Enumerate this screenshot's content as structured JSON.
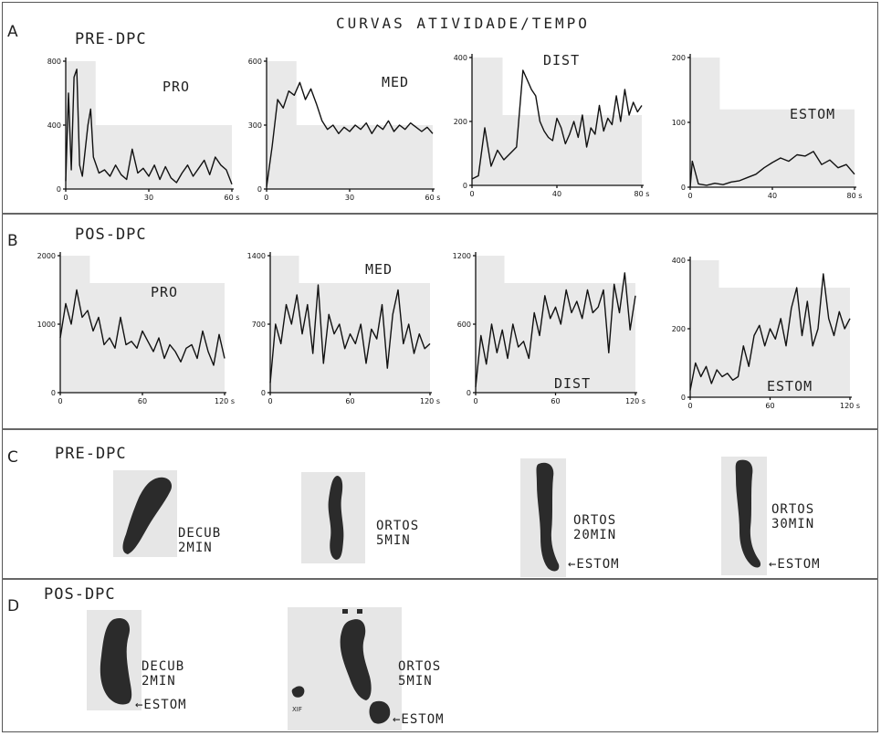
{
  "title": "CURVAS ATIVIDADE/TEMPO",
  "panels": {
    "A": {
      "letter": "A",
      "label": "PRE-DPC"
    },
    "B": {
      "letter": "B",
      "label": "POS-DPC"
    },
    "C": {
      "letter": "C",
      "label": "PRE-DPC"
    },
    "D": {
      "letter": "D",
      "label": "POS-DPC"
    }
  },
  "chart_data": [
    {
      "type": "line",
      "panel": "A",
      "series_label": "PRO",
      "xunit": "s",
      "xticks": [
        "0",
        "30",
        "60"
      ],
      "yticks": [
        "0",
        "400",
        "800"
      ],
      "xlim": [
        0,
        60
      ],
      "ylim": [
        0,
        800
      ],
      "x": [
        0,
        1,
        2,
        3,
        4,
        5,
        6,
        8,
        9,
        10,
        12,
        14,
        16,
        18,
        20,
        22,
        24,
        26,
        28,
        30,
        32,
        34,
        36,
        38,
        40,
        42,
        44,
        46,
        48,
        50,
        52,
        54,
        56,
        58,
        60
      ],
      "y": [
        50,
        600,
        120,
        700,
        750,
        150,
        80,
        400,
        500,
        200,
        100,
        120,
        80,
        150,
        90,
        60,
        250,
        100,
        130,
        80,
        150,
        60,
        140,
        70,
        40,
        100,
        150,
        80,
        130,
        180,
        90,
        200,
        150,
        120,
        30
      ]
    },
    {
      "type": "line",
      "panel": "A",
      "series_label": "MED",
      "xunit": "s",
      "xticks": [
        "0",
        "30",
        "60"
      ],
      "yticks": [
        "0",
        "300",
        "600"
      ],
      "xlim": [
        0,
        60
      ],
      "ylim": [
        0,
        600
      ],
      "x": [
        0,
        2,
        4,
        6,
        8,
        10,
        12,
        14,
        16,
        18,
        20,
        22,
        24,
        26,
        28,
        30,
        32,
        34,
        36,
        38,
        40,
        42,
        44,
        46,
        48,
        50,
        52,
        54,
        56,
        58,
        60
      ],
      "y": [
        10,
        200,
        420,
        380,
        460,
        440,
        500,
        420,
        470,
        400,
        320,
        280,
        300,
        260,
        290,
        270,
        300,
        280,
        310,
        260,
        300,
        280,
        320,
        270,
        300,
        280,
        310,
        290,
        270,
        290,
        260
      ]
    },
    {
      "type": "line",
      "panel": "A",
      "series_label": "DIST",
      "xunit": "s",
      "xticks": [
        "0",
        "40",
        "80"
      ],
      "yticks": [
        "0",
        "200",
        "400"
      ],
      "xlim": [
        0,
        80
      ],
      "ylim": [
        0,
        400
      ],
      "x": [
        0,
        3,
        6,
        9,
        12,
        15,
        18,
        21,
        24,
        26,
        28,
        30,
        32,
        34,
        36,
        38,
        40,
        42,
        44,
        46,
        48,
        50,
        52,
        54,
        56,
        58,
        60,
        62,
        64,
        66,
        68,
        70,
        72,
        74,
        76,
        78,
        80
      ],
      "y": [
        20,
        30,
        180,
        60,
        110,
        80,
        100,
        120,
        360,
        330,
        300,
        280,
        200,
        170,
        150,
        140,
        210,
        180,
        130,
        160,
        200,
        150,
        220,
        120,
        180,
        160,
        250,
        170,
        210,
        190,
        280,
        200,
        300,
        220,
        260,
        230,
        250
      ]
    },
    {
      "type": "line",
      "panel": "A",
      "series_label": "ESTOM",
      "xunit": "s",
      "xticks": [
        "0",
        "40",
        "80"
      ],
      "yticks": [
        "0",
        "100",
        "200"
      ],
      "xlim": [
        0,
        80
      ],
      "ylim": [
        0,
        200
      ],
      "x": [
        0,
        1,
        4,
        8,
        12,
        16,
        20,
        24,
        28,
        32,
        36,
        40,
        44,
        48,
        52,
        56,
        60,
        64,
        68,
        72,
        76,
        80
      ],
      "y": [
        0,
        40,
        5,
        3,
        6,
        4,
        8,
        10,
        15,
        20,
        30,
        38,
        45,
        40,
        50,
        48,
        55,
        35,
        42,
        30,
        35,
        20
      ]
    },
    {
      "type": "line",
      "panel": "B",
      "series_label": "PRO",
      "xunit": "s",
      "xticks": [
        "0",
        "60",
        "120"
      ],
      "yticks": [
        "0",
        "1000",
        "2000"
      ],
      "xlim": [
        0,
        120
      ],
      "ylim": [
        0,
        2000
      ],
      "x": [
        0,
        4,
        8,
        12,
        16,
        20,
        24,
        28,
        32,
        36,
        40,
        44,
        48,
        52,
        56,
        60,
        64,
        68,
        72,
        76,
        80,
        84,
        88,
        92,
        96,
        100,
        104,
        108,
        112,
        116,
        120
      ],
      "y": [
        800,
        1300,
        1000,
        1500,
        1100,
        1200,
        900,
        1100,
        700,
        800,
        650,
        1100,
        700,
        750,
        650,
        900,
        750,
        600,
        800,
        500,
        700,
        600,
        450,
        650,
        700,
        500,
        900,
        600,
        400,
        850,
        500
      ]
    },
    {
      "type": "line",
      "panel": "B",
      "series_label": "MED",
      "xunit": "s",
      "xticks": [
        "0",
        "60",
        "120"
      ],
      "yticks": [
        "0",
        "700",
        "1400"
      ],
      "xlim": [
        0,
        120
      ],
      "ylim": [
        0,
        1400
      ],
      "x": [
        0,
        4,
        8,
        12,
        16,
        20,
        24,
        28,
        32,
        36,
        40,
        44,
        48,
        52,
        56,
        60,
        64,
        68,
        72,
        76,
        80,
        84,
        88,
        92,
        96,
        100,
        104,
        108,
        112,
        116,
        120
      ],
      "y": [
        100,
        700,
        500,
        900,
        700,
        1000,
        600,
        900,
        400,
        1100,
        300,
        800,
        600,
        700,
        450,
        600,
        500,
        700,
        300,
        650,
        550,
        900,
        250,
        800,
        1050,
        500,
        700,
        400,
        600,
        450,
        500
      ]
    },
    {
      "type": "line",
      "panel": "B",
      "series_label": "DIST",
      "xunit": "s",
      "xticks": [
        "0",
        "60",
        "120"
      ],
      "yticks": [
        "0",
        "600",
        "1200"
      ],
      "xlim": [
        0,
        120
      ],
      "ylim": [
        0,
        1200
      ],
      "x": [
        0,
        4,
        8,
        12,
        16,
        20,
        24,
        28,
        32,
        36,
        40,
        44,
        48,
        52,
        56,
        60,
        64,
        68,
        72,
        76,
        80,
        84,
        88,
        92,
        96,
        100,
        104,
        108,
        112,
        116,
        120
      ],
      "y": [
        50,
        500,
        250,
        600,
        350,
        550,
        300,
        600,
        400,
        450,
        300,
        700,
        500,
        850,
        650,
        750,
        600,
        900,
        700,
        800,
        650,
        900,
        700,
        750,
        900,
        350,
        950,
        700,
        1050,
        550,
        850
      ]
    },
    {
      "type": "line",
      "panel": "B",
      "series_label": "ESTOM",
      "xunit": "s",
      "xticks": [
        "0",
        "60",
        "120"
      ],
      "yticks": [
        "0",
        "200",
        "400"
      ],
      "xlim": [
        0,
        120
      ],
      "ylim": [
        0,
        400
      ],
      "x": [
        0,
        4,
        8,
        12,
        16,
        20,
        24,
        28,
        32,
        36,
        40,
        44,
        48,
        52,
        56,
        60,
        64,
        68,
        72,
        76,
        80,
        84,
        88,
        92,
        96,
        100,
        104,
        108,
        112,
        116,
        120
      ],
      "y": [
        20,
        100,
        60,
        90,
        40,
        80,
        60,
        70,
        50,
        60,
        150,
        90,
        180,
        210,
        150,
        200,
        170,
        230,
        150,
        260,
        320,
        180,
        280,
        150,
        200,
        360,
        230,
        180,
        250,
        200,
        230
      ]
    }
  ],
  "scans": {
    "pre": [
      {
        "label": "DECUB\n2MIN"
      },
      {
        "label": "ORTOS\n5MIN"
      },
      {
        "label": "ORTOS\n20MIN",
        "marker": "←ESTOM"
      },
      {
        "label": "ORTOS\n30MIN",
        "marker": "←ESTOM"
      }
    ],
    "pos": [
      {
        "label": "DECUB\n2MIN",
        "marker": "←ESTOM"
      },
      {
        "label": "ORTOS\n5MIN",
        "marker": "←ESTOM",
        "note": "XIF"
      }
    ]
  }
}
